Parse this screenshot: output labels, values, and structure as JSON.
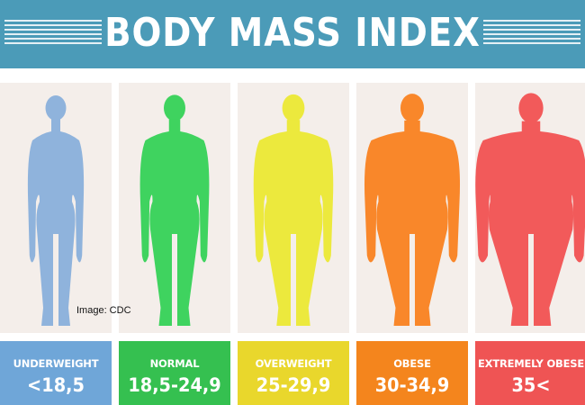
{
  "title": "BODY MASS INDEX",
  "image_credit": "Image: CDC",
  "categories": [
    {
      "name": "UNDERWEIGHT",
      "range": "<18,5",
      "figure_color": "#8fb3dc",
      "label_color": "#6fa6d8",
      "build": "slim"
    },
    {
      "name": "NORMAL",
      "range": "18,5-24,9",
      "figure_color": "#3fd35f",
      "label_color": "#35c050",
      "build": "athletic"
    },
    {
      "name": "OVERWEIGHT",
      "range": "25-29,9",
      "figure_color": "#ece93d",
      "label_color": "#e9d72c",
      "build": "stocky"
    },
    {
      "name": "OBESE",
      "range": "30-34,9",
      "figure_color": "#f9872a",
      "label_color": "#f4851d",
      "build": "heavy"
    },
    {
      "name": "EXTREMELY OBESE",
      "range": "35<",
      "figure_color": "#f25a5a",
      "label_color": "#ef5454",
      "build": "very-heavy"
    }
  ]
}
